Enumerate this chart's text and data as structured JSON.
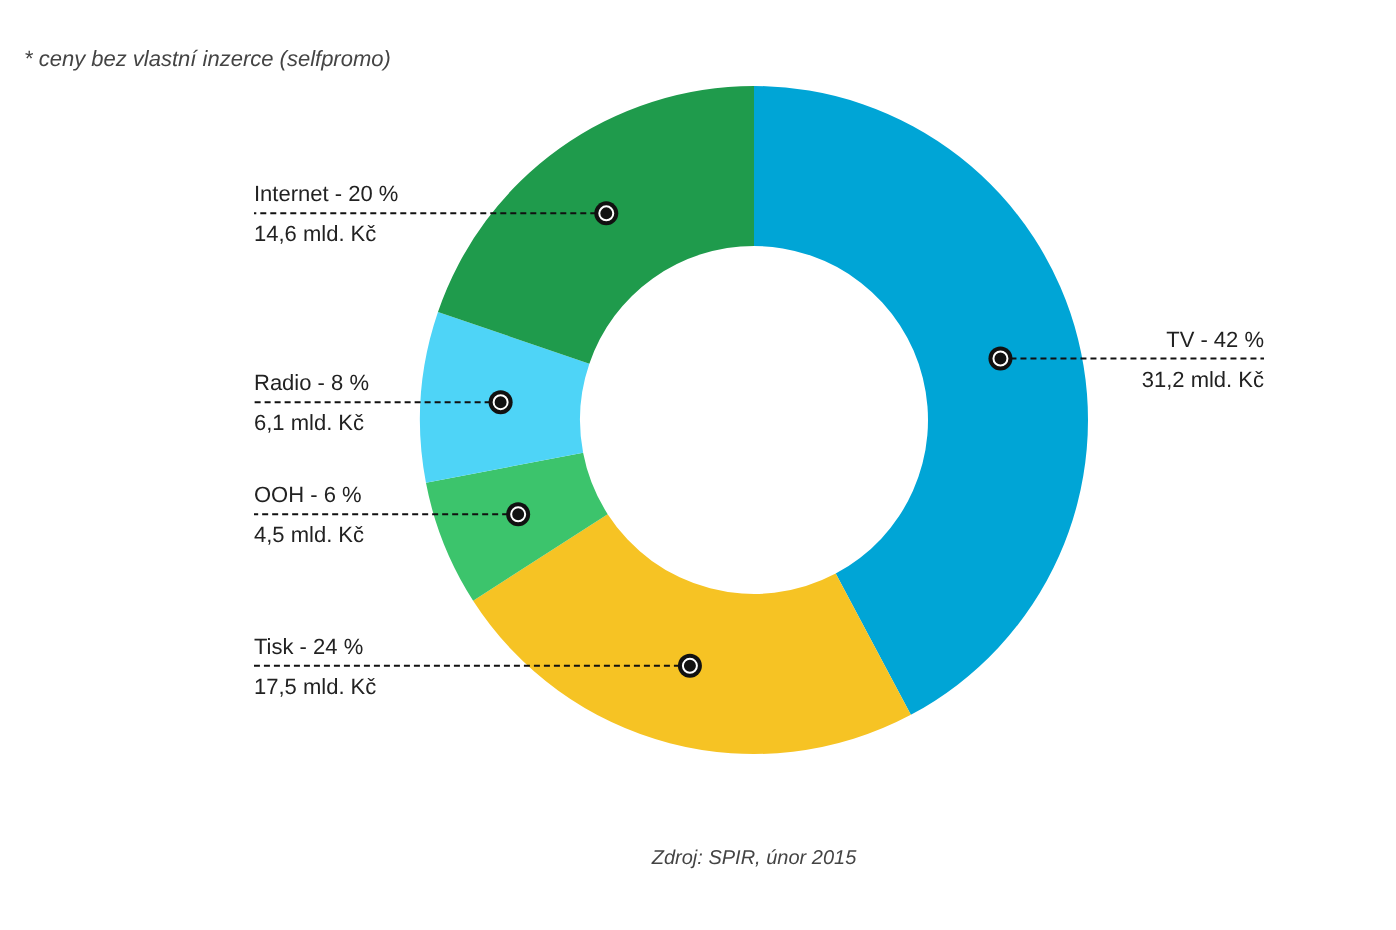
{
  "chart_data": {
    "type": "donut",
    "categories": [
      "TV - 42 %",
      "Tisk - 24 %",
      "OOH - 6 %",
      "Radio - 8 %",
      "Internet - 20 %"
    ],
    "values": [
      31.2,
      17.5,
      4.5,
      6.1,
      14.6
    ],
    "value_labels": [
      "31,2 mld. Kč",
      "17,5 mld. Kč",
      "4,5 mld. Kč",
      "6,1 mld. Kč",
      "14,6 mld. Kč"
    ],
    "colors": [
      "#00a5d6",
      "#f6c324",
      "#3cc46c",
      "#4ed4f7",
      "#1f9b4c"
    ],
    "annotations": [
      "* ceny bez vlastní inzerce (selfpromo)",
      "Zdroj: SPIR, únor 2015"
    ]
  }
}
